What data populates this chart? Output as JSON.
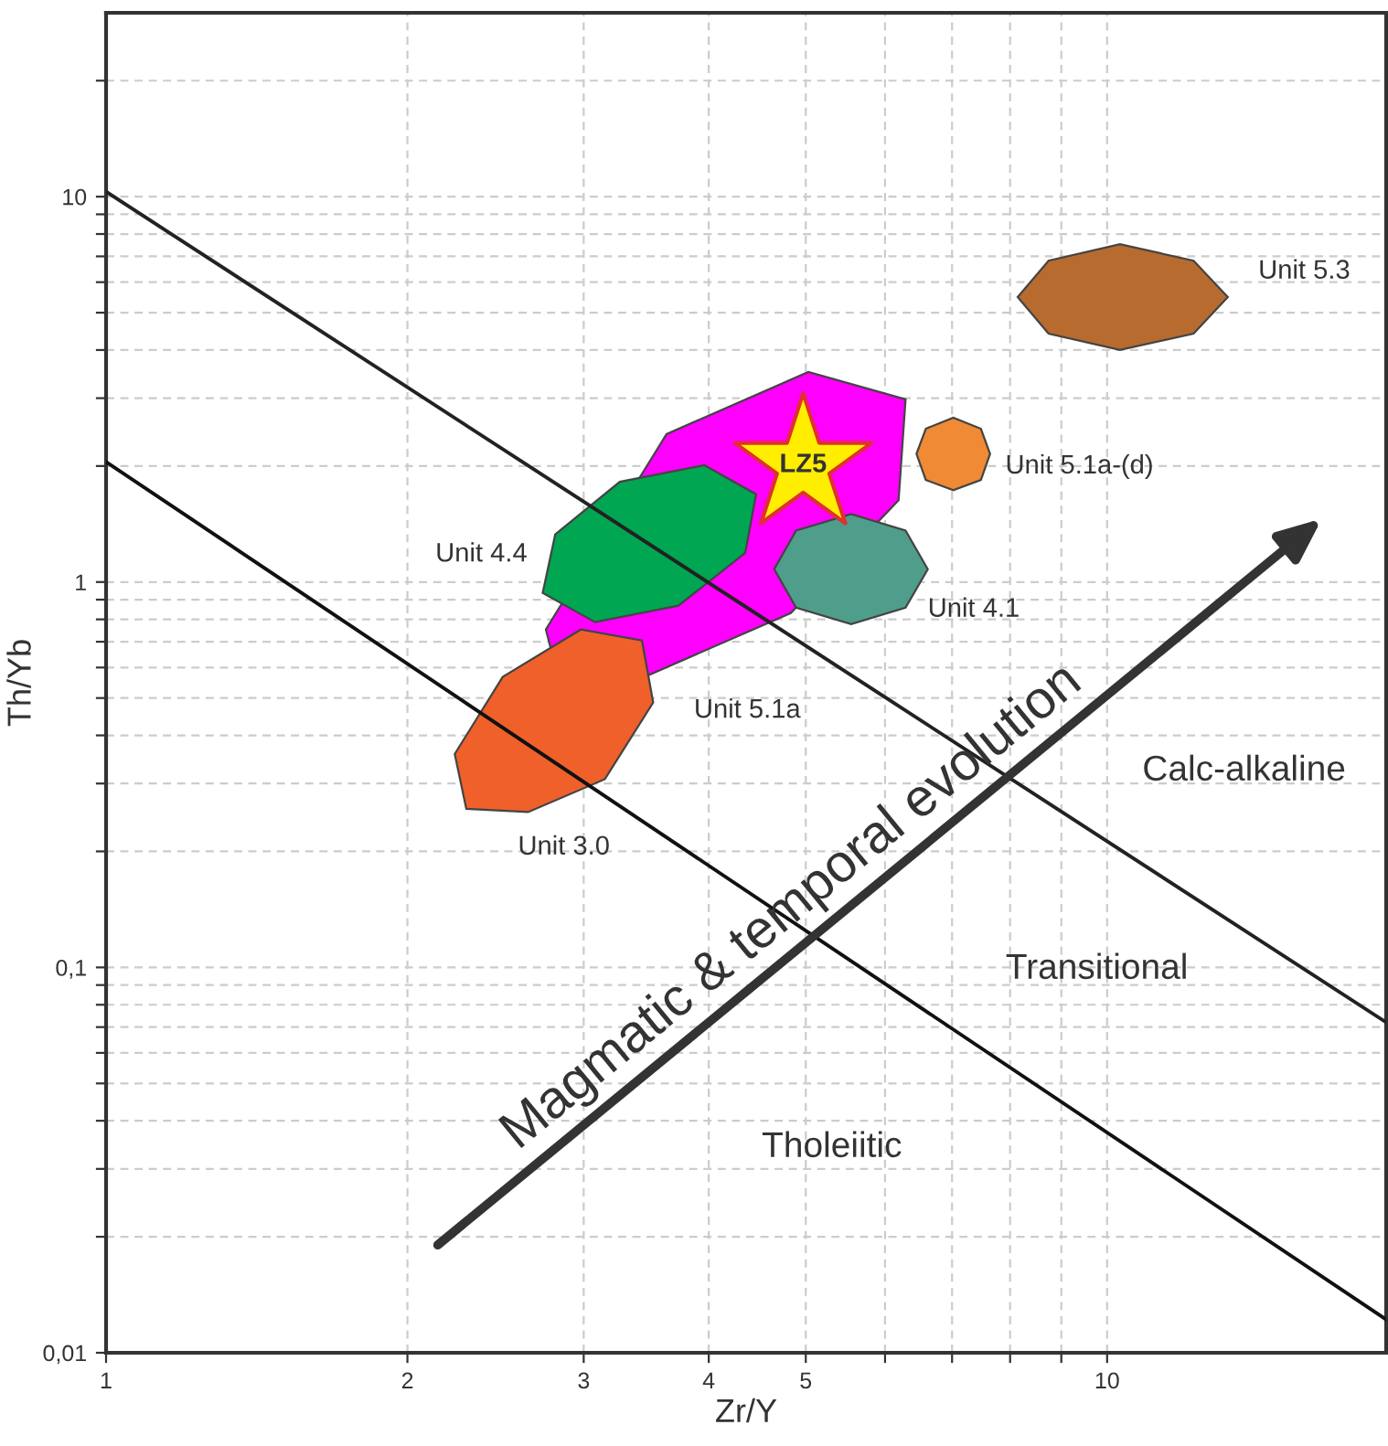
{
  "chart_data": {
    "type": "area",
    "xlabel": "Zr/Y",
    "ylabel": "Th/Yb",
    "log": "xy",
    "grid": true,
    "xlim": [
      1,
      19
    ],
    "ylim": [
      0.01,
      30
    ],
    "xticks": [
      1,
      2,
      3,
      4,
      5,
      {
        "value": 6,
        "label": null
      },
      {
        "value": 7,
        "label": null
      },
      {
        "value": 8,
        "label": null
      },
      {
        "value": 9,
        "label": null
      },
      10
    ],
    "yticks": [
      {
        "value": 0.01,
        "label": "0,01"
      },
      {
        "value": 0.02,
        "label": null
      },
      {
        "value": 0.03,
        "label": null
      },
      {
        "value": 0.04,
        "label": null
      },
      {
        "value": 0.05,
        "label": null
      },
      {
        "value": 0.06,
        "label": null
      },
      {
        "value": 0.07,
        "label": null
      },
      {
        "value": 0.08,
        "label": null
      },
      {
        "value": 0.09,
        "label": null
      },
      {
        "value": 0.1,
        "label": "0,1"
      },
      {
        "value": 0.2,
        "label": null
      },
      {
        "value": 0.3,
        "label": null
      },
      {
        "value": 0.4,
        "label": null
      },
      {
        "value": 0.5,
        "label": null
      },
      {
        "value": 0.6,
        "label": null
      },
      {
        "value": 0.7,
        "label": null
      },
      {
        "value": 0.8,
        "label": null
      },
      {
        "value": 0.9,
        "label": null
      },
      1,
      {
        "value": 2,
        "label": null
      },
      {
        "value": 3,
        "label": null
      },
      {
        "value": 4,
        "label": null
      },
      {
        "value": 5,
        "label": null
      },
      {
        "value": 6,
        "label": null
      },
      {
        "value": 7,
        "label": null
      },
      {
        "value": 8,
        "label": null
      },
      {
        "value": 9,
        "label": null
      },
      10,
      {
        "value": 20,
        "label": null
      }
    ],
    "series": [
      {
        "name": "Unit 5.3",
        "color": "#b86b2e",
        "x": [
          13.2,
          12.2,
          10.3,
          8.74,
          8.14,
          8.74,
          10.3,
          12.2
        ],
        "values": [
          5.49,
          6.82,
          7.53,
          6.82,
          5.49,
          4.41,
          4.0,
          4.41
        ]
      },
      {
        "name": "Unit 5.1a-(d)",
        "color": "#f08a34",
        "x": [
          7.64,
          7.48,
          7.02,
          6.59,
          6.45,
          6.59,
          7.02,
          7.48
        ],
        "values": [
          2.15,
          2.5,
          2.67,
          2.5,
          2.15,
          1.84,
          1.73,
          1.84
        ]
      },
      {
        "name": "Unit 5.1a",
        "color": "#ff00ff",
        "x": [
          6.29,
          6.19,
          4.83,
          3.48,
          2.78,
          2.75,
          3.63,
          5.03
        ],
        "values": [
          2.98,
          1.63,
          0.83,
          0.573,
          0.675,
          0.753,
          2.42,
          3.51
        ]
      },
      {
        "name": "Unit 4.4",
        "color": "#00a651",
        "x": [
          4.46,
          4.35,
          3.73,
          3.08,
          2.73,
          2.81,
          3.26,
          3.96
        ],
        "values": [
          1.69,
          1.19,
          0.868,
          0.787,
          0.937,
          1.33,
          1.82,
          2.01
        ]
      },
      {
        "name": "Unit 4.1",
        "color": "#4f9e8c",
        "x": [
          6.62,
          6.29,
          5.55,
          4.89,
          4.65,
          4.89,
          5.55,
          6.29
        ],
        "values": [
          1.08,
          1.36,
          1.5,
          1.36,
          1.08,
          0.858,
          0.778,
          0.858
        ]
      },
      {
        "name": "Unit 3.0",
        "color": "#f0602a",
        "x": [
          3.43,
          3.52,
          3.15,
          2.64,
          2.29,
          2.23,
          2.49,
          2.98
        ],
        "values": [
          0.705,
          0.487,
          0.308,
          0.253,
          0.258,
          0.358,
          0.567,
          0.753
        ]
      },
      {
        "name": "LZ5",
        "type": "scatter",
        "marker": "star",
        "color": "#ffee00",
        "x": [
          4.97
        ],
        "values": [
          2.01
        ]
      },
      {
        "type": "line",
        "color": "#222222",
        "x": [
          1,
          19
        ],
        "values": [
          10.3,
          0.072
        ]
      },
      {
        "type": "line",
        "color": "#111111",
        "x": [
          1,
          19
        ],
        "values": [
          2.05,
          0.0122
        ]
      }
    ],
    "annotations": [
      "Calc-alkaline",
      "Transitional",
      "Tholeiitic",
      "Magmatic & temporal evolution"
    ]
  }
}
